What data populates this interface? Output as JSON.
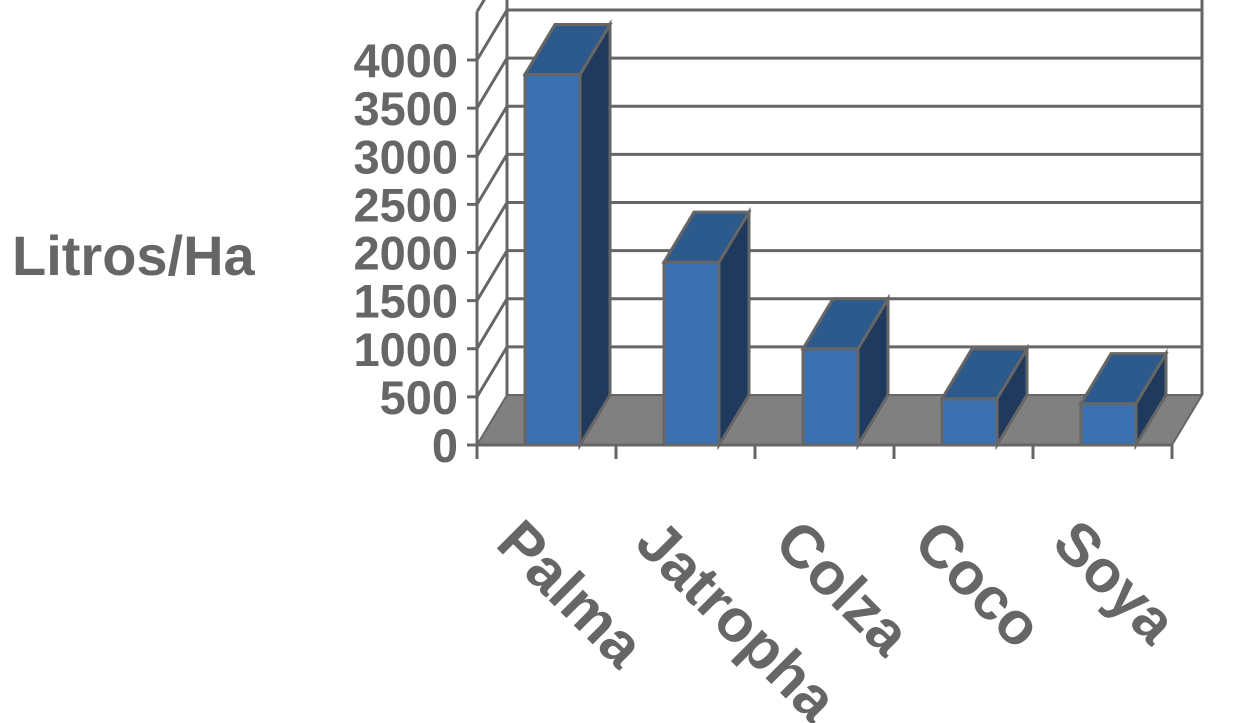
{
  "chart_data": {
    "type": "bar",
    "categories": [
      "Palma",
      "Jatropha",
      "Colza",
      "Coco",
      "Soya"
    ],
    "values": [
      3850,
      1900,
      1000,
      480,
      430
    ],
    "title": "",
    "xlabel": "",
    "ylabel": "Litros/Ha",
    "ylim": [
      0,
      4000
    ],
    "yticks": [
      0,
      500,
      1000,
      1500,
      2000,
      2500,
      3000,
      3500,
      4000
    ],
    "grid": true,
    "style": "3d-column",
    "colors": {
      "bar_front": "#3a70b0",
      "bar_side": "#1f3a5c",
      "bar_top": "#2c5a8c",
      "floor": "#808080",
      "grid": "#666666",
      "text": "#666666"
    }
  }
}
